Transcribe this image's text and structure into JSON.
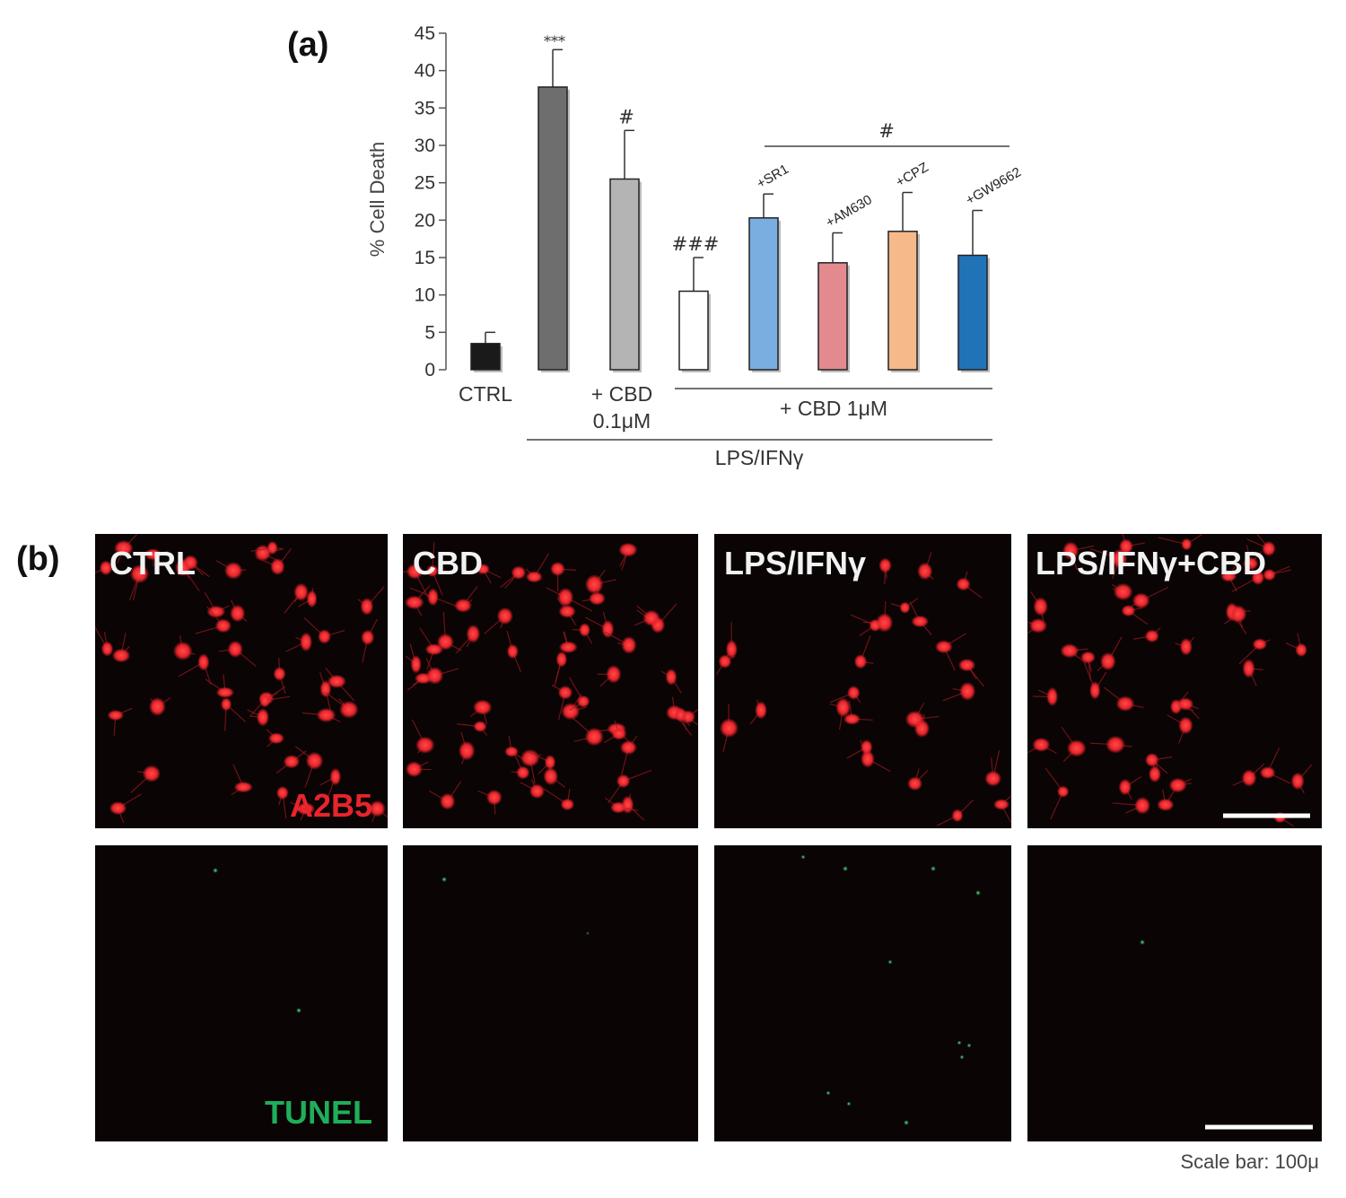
{
  "panel_a": {
    "label": "(a)",
    "chart_data": {
      "type": "bar",
      "ylabel": "% Cell Death",
      "ylim": [
        0,
        45
      ],
      "yticks": [
        0,
        5,
        10,
        15,
        20,
        25,
        30,
        35,
        40,
        45
      ],
      "bars": [
        {
          "label": "CTRL",
          "value": 3.5,
          "error": 1.5,
          "sig": "",
          "color": "#1a1a1a"
        },
        {
          "label": "",
          "value": 37.8,
          "error": 5.0,
          "sig": "***",
          "color": "#6e6e6e"
        },
        {
          "label": "",
          "value": 25.5,
          "error": 6.5,
          "sig": "#",
          "color": "#b4b4b4"
        },
        {
          "label": "",
          "value": 10.5,
          "error": 4.5,
          "sig": "###",
          "color": "#ffffff"
        },
        {
          "label": "+SR1",
          "value": 20.3,
          "error": 3.2,
          "sig": "",
          "color": "#7aaee0"
        },
        {
          "label": "+AM630",
          "value": 14.3,
          "error": 4.0,
          "sig": "",
          "color": "#e38a8f"
        },
        {
          "label": "+CPZ",
          "value": 18.5,
          "error": 5.2,
          "sig": "",
          "color": "#f5b98a"
        },
        {
          "label": "+GW9662",
          "value": 15.3,
          "error": 6.0,
          "sig": "",
          "color": "#2173b8"
        }
      ],
      "group_sig": "#",
      "groups": {
        "cbd_low_line1": "+ CBD",
        "cbd_low_line2": "0.1μM",
        "cbd_high": "+ CBD 1μM",
        "lps": "LPS/IFNγ"
      }
    }
  },
  "panel_b": {
    "label": "(b)",
    "conditions": [
      "CTRL",
      "CBD",
      "LPS/IFNγ",
      "LPS/IFNγ+CBD"
    ],
    "row_labels": [
      "A2B5",
      "TUNEL"
    ],
    "scale_bar": "Scale bar: 100μ",
    "colors": {
      "a2b5": "#e8242c",
      "tunel": "#1fae5a",
      "background": "#0a0404"
    }
  }
}
